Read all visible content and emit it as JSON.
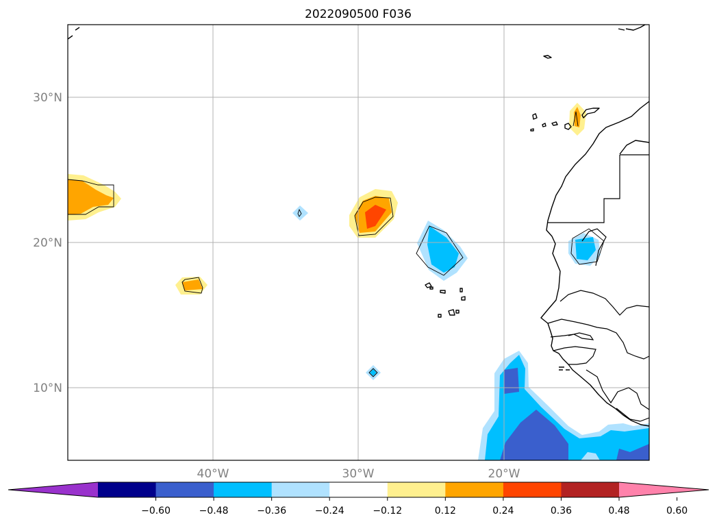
{
  "title": "2022090500 F036",
  "map": {
    "lon_range": [
      -50,
      -10
    ],
    "lat_range": [
      5,
      35
    ],
    "lat_labels": [
      "30°N",
      "20°N",
      "10°N"
    ],
    "lon_labels": [
      "40°W",
      "30°W",
      "20°W"
    ],
    "grid": true,
    "coastline": true
  },
  "colorbar": {
    "orientation": "horizontal",
    "extend": "both",
    "levels": [
      -0.72,
      -0.6,
      -0.48,
      -0.36,
      -0.24,
      -0.12,
      0.12,
      0.24,
      0.36,
      0.48,
      0.6,
      0.72
    ],
    "tick_labels": [
      "−0.60",
      "−0.48",
      "−0.36",
      "−0.24",
      "−0.12",
      "0.12",
      "0.24",
      "0.36",
      "0.48",
      "0.60"
    ],
    "colors": [
      "#9932cc",
      "#00008b",
      "#3a5fcd",
      "#00bfff",
      "#b0e2ff",
      "#ffffff",
      "#fff08f",
      "#ffa500",
      "#ff4500",
      "#b22222",
      "#ff82ab"
    ],
    "under_color": "#9932cc",
    "over_color": "#ff82ab"
  }
}
